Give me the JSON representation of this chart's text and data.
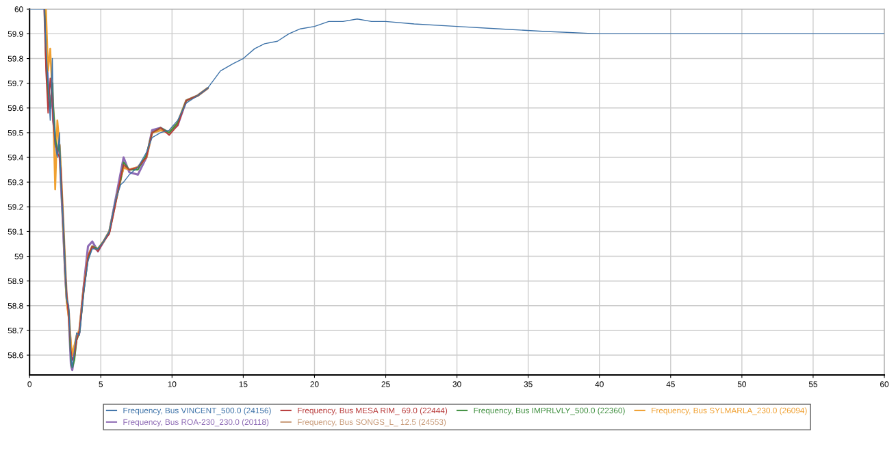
{
  "chart_data": {
    "type": "line",
    "x": [
      0,
      1.05,
      1.15,
      1.3,
      1.45,
      1.6,
      1.65,
      1.8,
      1.95,
      2.1,
      2.2,
      2.35,
      2.5,
      2.6,
      2.75,
      2.9,
      3.0,
      3.15,
      3.3,
      3.5,
      3.8,
      4.1,
      4.4,
      4.8,
      5.2,
      5.6,
      6.0,
      6.4,
      6.6,
      7.0,
      7.6,
      8.2,
      8.6,
      9.2,
      9.8,
      10.4,
      11,
      11.8,
      12.5,
      13.4,
      14.3,
      15,
      15.8,
      16.5,
      17.4,
      18.2,
      19,
      20,
      21,
      22,
      23,
      24,
      25,
      27,
      30,
      33,
      36,
      40,
      45,
      50,
      55,
      60
    ],
    "series": [
      {
        "name": "Frequency, Bus VINCENT_500.0 (24156)",
        "color": "#3d72a8",
        "values": [
          60,
          60,
          59.85,
          59.7,
          59.55,
          59.8,
          59.6,
          59.45,
          59.4,
          59.5,
          59.3,
          59.15,
          58.95,
          58.83,
          58.8,
          58.6,
          58.55,
          58.62,
          58.69,
          58.68,
          58.85,
          58.98,
          59.03,
          59.03,
          59.06,
          59.1,
          59.22,
          59.29,
          59.3,
          59.33,
          59.36,
          59.42,
          59.48,
          59.5,
          59.51,
          59.55,
          59.62,
          59.65,
          59.68,
          59.75,
          59.78,
          59.8,
          59.84,
          59.86,
          59.87,
          59.9,
          59.92,
          59.93,
          59.95,
          59.95,
          59.96,
          59.95,
          59.95,
          59.94,
          59.93,
          59.92,
          59.91,
          59.9,
          59.9,
          59.9,
          59.9,
          59.9
        ]
      },
      {
        "name": "Frequency, Bus MESA RIM_ 69.0 (22444)",
        "color": "#b83a3a",
        "values": [
          null,
          60,
          59.75,
          59.58,
          59.72,
          59.62,
          59.55,
          59.45,
          59.42,
          59.4,
          59.35,
          59.15,
          58.95,
          58.85,
          58.75,
          58.62,
          58.58,
          58.6,
          58.66,
          58.7,
          58.87,
          59.0,
          59.04,
          59.02,
          59.06,
          59.09,
          59.2,
          59.32,
          59.37,
          59.35,
          59.36,
          59.4,
          59.5,
          59.52,
          59.49,
          59.53,
          59.63,
          59.65,
          59.68,
          null,
          null,
          null,
          null,
          null,
          null,
          null,
          null,
          null,
          null,
          null,
          null,
          null,
          null,
          null,
          null,
          null,
          null,
          null,
          null,
          null,
          null,
          null
        ]
      },
      {
        "name": "Frequency, Bus IMPRLVLY_500.0 (22360)",
        "color": "#3f8f3f",
        "values": [
          null,
          60,
          59.8,
          59.65,
          59.6,
          59.7,
          59.62,
          59.48,
          59.42,
          59.45,
          59.32,
          59.15,
          58.95,
          58.83,
          58.78,
          58.58,
          58.55,
          58.58,
          58.66,
          58.69,
          58.86,
          58.99,
          59.04,
          59.03,
          59.06,
          59.1,
          59.21,
          59.31,
          59.38,
          59.35,
          59.35,
          59.41,
          59.5,
          59.52,
          59.5,
          59.54,
          59.63,
          59.65,
          59.68,
          null,
          null,
          null,
          null,
          null,
          null,
          null,
          null,
          null,
          null,
          null,
          null,
          null,
          null,
          null,
          null,
          null,
          null,
          null,
          null,
          null,
          null,
          null
        ]
      },
      {
        "name": "Frequency, Bus SYLMARLA_230.0 (26094)",
        "color": "#f0a030",
        "values": [
          null,
          60,
          60,
          59.75,
          59.84,
          59.65,
          59.6,
          59.27,
          59.55,
          59.45,
          59.35,
          59.15,
          58.95,
          58.82,
          58.75,
          58.65,
          58.6,
          58.64,
          58.68,
          58.7,
          58.87,
          59.0,
          59.04,
          59.03,
          59.06,
          59.1,
          59.21,
          59.31,
          59.36,
          59.35,
          59.36,
          59.4,
          59.5,
          59.51,
          59.5,
          59.54,
          59.63,
          59.65,
          59.68,
          null,
          null,
          null,
          null,
          null,
          null,
          null,
          null,
          null,
          null,
          null,
          null,
          null,
          null,
          null,
          null,
          null,
          null,
          null,
          null,
          null,
          null,
          null
        ]
      },
      {
        "name": "Frequency, Bus ROA-230_230.0 (20118)",
        "color": "#8e6bb5",
        "values": [
          null,
          60,
          59.85,
          59.7,
          59.6,
          59.65,
          59.55,
          59.48,
          59.44,
          59.42,
          59.3,
          59.12,
          58.92,
          58.83,
          58.76,
          58.56,
          58.54,
          58.6,
          58.67,
          58.69,
          58.88,
          59.04,
          59.06,
          59.02,
          59.06,
          59.1,
          59.22,
          59.34,
          59.4,
          59.34,
          59.33,
          59.4,
          59.51,
          59.52,
          59.5,
          59.53,
          59.63,
          59.65,
          59.68,
          null,
          null,
          null,
          null,
          null,
          null,
          null,
          null,
          null,
          null,
          null,
          null,
          null,
          null,
          null,
          null,
          null,
          null,
          null,
          null,
          null,
          null,
          null
        ]
      },
      {
        "name": "Frequency, Bus SONGS_L_ 12.5 (24553)",
        "color": "#c89a78",
        "values": [
          null,
          60,
          59.82,
          59.68,
          59.6,
          59.7,
          59.6,
          59.47,
          59.42,
          59.45,
          59.33,
          59.15,
          58.95,
          58.84,
          58.77,
          58.63,
          58.6,
          58.63,
          58.67,
          58.7,
          58.87,
          59.0,
          59.04,
          59.03,
          59.06,
          59.1,
          59.21,
          59.32,
          59.36,
          59.35,
          59.36,
          59.4,
          59.5,
          59.51,
          59.5,
          59.54,
          59.63,
          59.65,
          59.68,
          null,
          null,
          null,
          null,
          null,
          null,
          null,
          null,
          null,
          null,
          null,
          null,
          null,
          null,
          null,
          null,
          null,
          null,
          null,
          null,
          null,
          null,
          null
        ]
      }
    ],
    "xlim": [
      0,
      60
    ],
    "xticks": [
      0,
      5,
      10,
      15,
      20,
      25,
      30,
      35,
      40,
      45,
      50,
      55,
      60
    ],
    "ylim": [
      58.52,
      60
    ],
    "yticks": [
      58.6,
      58.7,
      58.8,
      58.9,
      59,
      59.1,
      59.2,
      59.3,
      59.4,
      59.5,
      59.6,
      59.7,
      59.8,
      59.9,
      60
    ],
    "grid": true,
    "legend": "bottom"
  }
}
